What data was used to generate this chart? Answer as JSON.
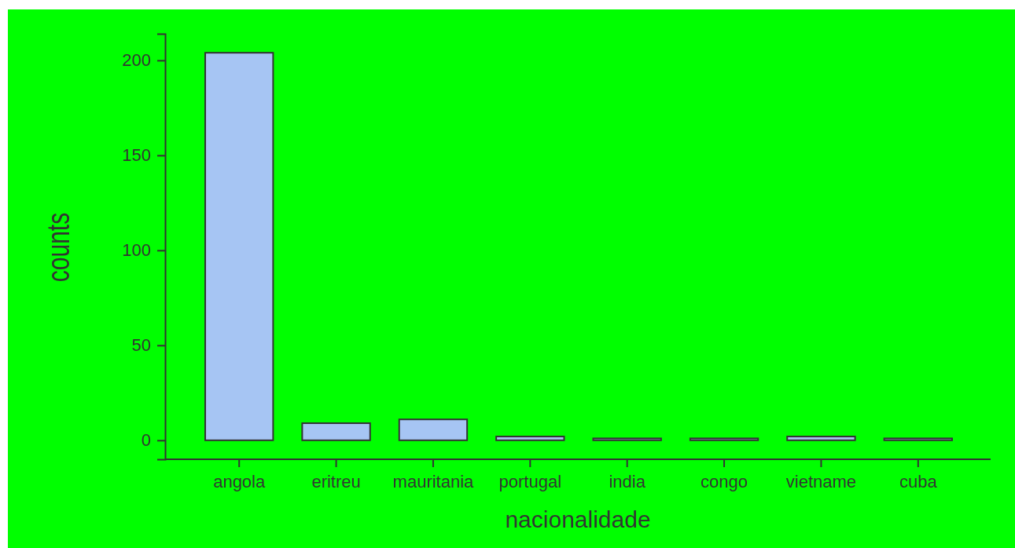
{
  "chart_data": {
    "type": "bar",
    "xlabel": "nacionalidade",
    "ylabel": "counts",
    "categories": [
      "angola",
      "eritreu",
      "mauritania",
      "portugal",
      "india",
      "congo",
      "vietname",
      "cuba"
    ],
    "values": [
      204,
      9,
      11,
      2,
      1,
      1,
      2,
      1
    ],
    "color": "#a6c5f3",
    "ylim": [
      -10,
      214
    ],
    "yticks": [
      0,
      50,
      100,
      150,
      200
    ],
    "grid": false
  }
}
